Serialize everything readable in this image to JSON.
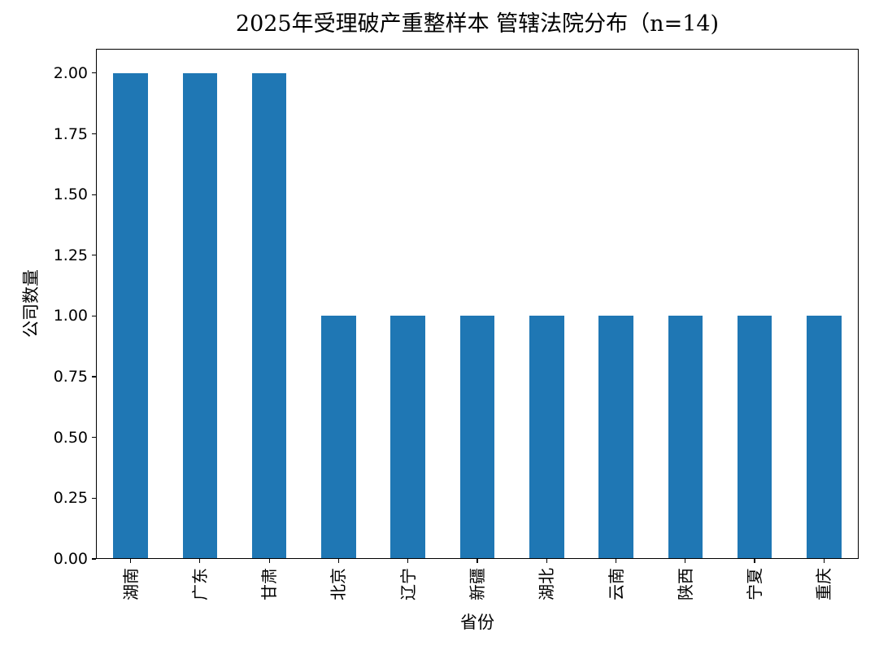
{
  "chart_data": {
    "type": "bar",
    "title": "2025年受理破产重整样本 管辖法院分布（n=14)",
    "categories": [
      "湖南",
      "广东",
      "甘肃",
      "北京",
      "辽宁",
      "新疆",
      "湖北",
      "云南",
      "陕西",
      "宁夏",
      "重庆"
    ],
    "values": [
      2,
      2,
      2,
      1,
      1,
      1,
      1,
      1,
      1,
      1,
      1
    ],
    "xlabel": "省份",
    "ylabel": "公司数量",
    "ylim": [
      0,
      2.1
    ],
    "yticks": [
      0.0,
      0.25,
      0.5,
      0.75,
      1.0,
      1.25,
      1.5,
      1.75,
      2.0
    ],
    "ytick_labels": [
      "0.00",
      "0.25",
      "0.50",
      "0.75",
      "1.00",
      "1.25",
      "1.50",
      "1.75",
      "2.00"
    ],
    "bar_color": "#1f77b4",
    "bar_width_fraction": 0.5,
    "label_rotation_deg": 90,
    "grid": false,
    "legend": "none",
    "n_total": 14
  }
}
